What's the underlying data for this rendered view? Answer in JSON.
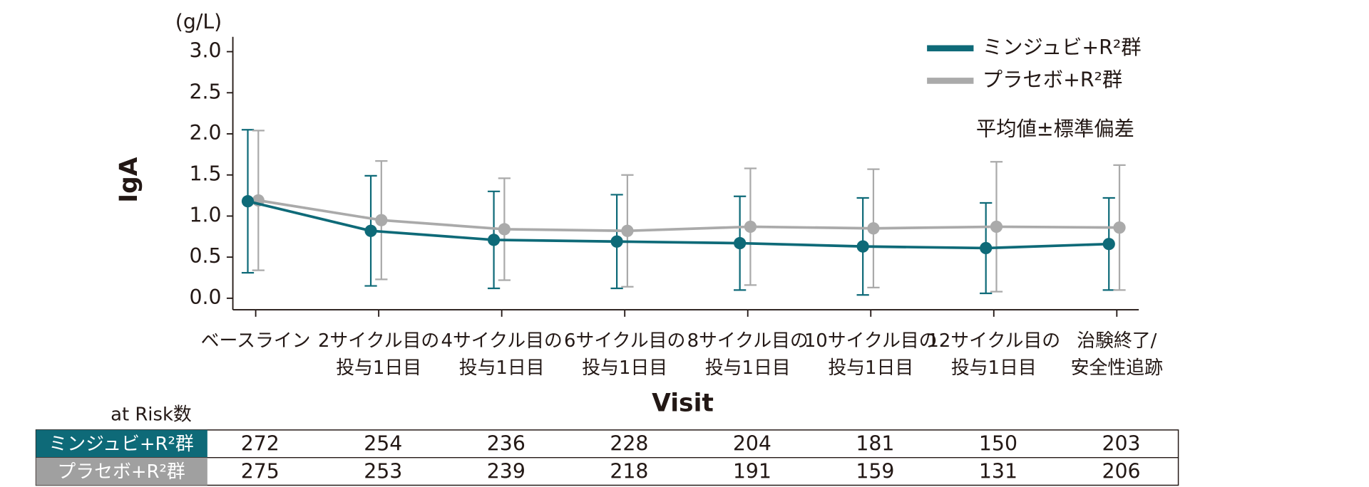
{
  "chart_data": {
    "type": "line",
    "y_unit": "(g/L)",
    "y_label": "IgA",
    "x_label": "Visit",
    "note": "平均値±標準偏差",
    "categories": [
      [
        "ベースライン"
      ],
      [
        "2サイクル目の",
        "投与1日目"
      ],
      [
        "4サイクル目の",
        "投与1日目"
      ],
      [
        "6サイクル目の",
        "投与1日目"
      ],
      [
        "8サイクル目の",
        "投与1日目"
      ],
      [
        "10サイクル目の",
        "投与1日目"
      ],
      [
        "12サイクル目の",
        "投与1日目"
      ],
      [
        "治験終了/",
        "安全性追跡"
      ]
    ],
    "series": [
      {
        "name": "ミンジュビ+R²群",
        "color": "#0e6a78",
        "values": [
          1.18,
          0.82,
          0.71,
          0.69,
          0.67,
          0.63,
          0.61,
          0.66
        ],
        "errors": [
          0.87,
          0.67,
          0.59,
          0.57,
          0.57,
          0.59,
          0.55,
          0.56
        ]
      },
      {
        "name": "プラセボ+R²群",
        "color": "#aaaaaa",
        "values": [
          1.19,
          0.95,
          0.84,
          0.82,
          0.87,
          0.85,
          0.87,
          0.86
        ],
        "errors": [
          0.85,
          0.72,
          0.62,
          0.68,
          0.71,
          0.72,
          0.79,
          0.76
        ]
      }
    ],
    "ylim": [
      -0.14,
      3.18
    ],
    "yticks": [
      {
        "value": 0,
        "label": "0.0"
      },
      0.5,
      {
        "value": 1,
        "label": "1.0"
      },
      1.5,
      {
        "value": 2,
        "label": "2.0"
      },
      2.5,
      {
        "value": 3,
        "label": "3.0"
      }
    ],
    "legend": "top-right",
    "at_risk": {
      "title": "at Risk数",
      "rows": [
        {
          "name": "ミンジュビ+R²群",
          "color": "#0e6a78",
          "values": [
            272,
            254,
            236,
            228,
            204,
            181,
            150,
            203
          ]
        },
        {
          "name": "プラセボ+R²群",
          "color": "#a0a0a0",
          "values": [
            275,
            253,
            239,
            218,
            191,
            159,
            131,
            206
          ]
        }
      ]
    }
  }
}
